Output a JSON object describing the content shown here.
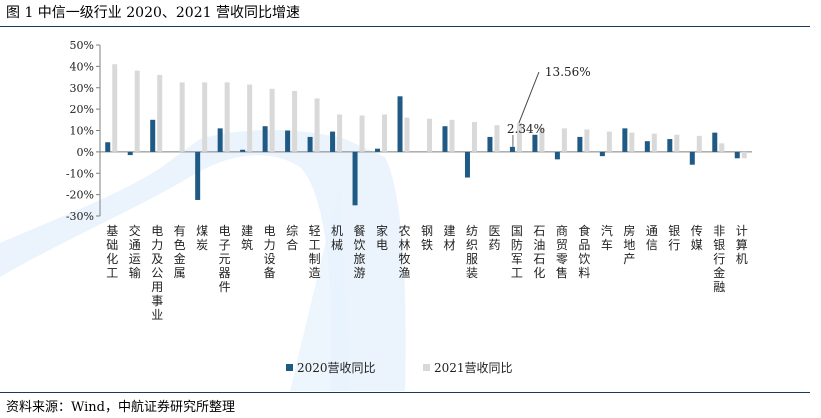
{
  "title": "图 1 中信一级行业 2020、2021 营收同比增速",
  "source": "资料来源：Wind，中航证券研究所整理",
  "colors": {
    "series_2020": "#1f5a85",
    "series_2021": "#d9d9d9",
    "rule": "#1a3a5c"
  },
  "chart_data": {
    "type": "bar",
    "categories": [
      "基础化工",
      "交通运输",
      "电力及公用事业",
      "有色金属",
      "煤炭",
      "电子元器件",
      "建筑",
      "电力设备",
      "综合",
      "轻工制造",
      "机械",
      "餐饮旅游",
      "家电",
      "农林牧渔",
      "钢铁",
      "建材",
      "纺织服装",
      "医药",
      "国防军工",
      "石油石化",
      "商贸零售",
      "食品饮料",
      "汽车",
      "房地产",
      "通信",
      "银行",
      "传媒",
      "非银行金融",
      "计算机"
    ],
    "series": [
      {
        "name": "2020营收同比",
        "values": [
          4.5,
          -1.5,
          15,
          0,
          -22.5,
          11,
          1,
          12,
          10,
          7,
          9.5,
          -25,
          1.5,
          26,
          0,
          12,
          -12,
          7,
          2.34,
          8,
          -3.5,
          7,
          -2,
          11,
          5,
          6,
          -6,
          9,
          -3
        ]
      },
      {
        "name": "2021营收同比",
        "values": [
          41,
          38,
          36,
          32.5,
          32.5,
          32.5,
          31.5,
          29.5,
          28.5,
          25,
          17.5,
          17,
          17.5,
          16,
          15.5,
          15,
          14,
          12.5,
          13.56,
          11.5,
          11,
          10.5,
          9.5,
          9,
          8.5,
          8,
          7.5,
          4,
          -3
        ]
      }
    ],
    "yticks": [
      "50%",
      "40%",
      "30%",
      "20%",
      "10%",
      "0%",
      "-10%",
      "-20%",
      "-30%"
    ],
    "ylim": [
      -30,
      50
    ],
    "annotations": [
      {
        "label": "13.56%",
        "category": "国防军工",
        "series": "2021营收同比"
      },
      {
        "label": "2.34%",
        "category": "国防军工",
        "series": "2020营收同比"
      }
    ],
    "legend_position": "bottom-center"
  }
}
